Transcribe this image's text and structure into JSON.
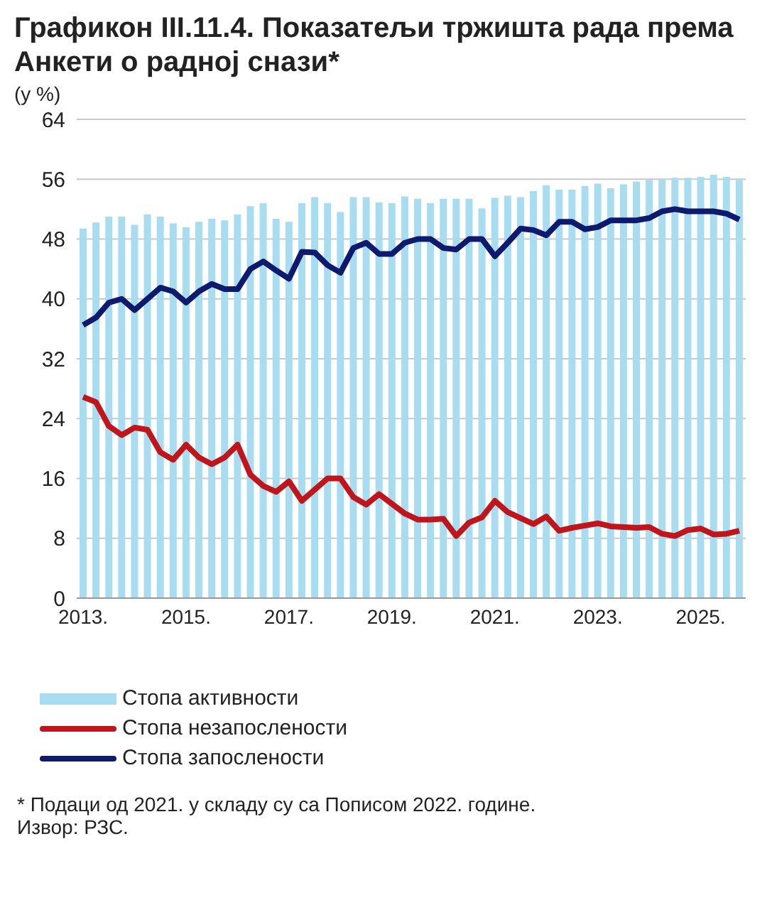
{
  "chart_data": {
    "type": "bar",
    "title": "Графикон III.11.4. Показатељи тржишта рада према Анкети о радној снази*",
    "subtitle": "(у %)",
    "categories": [
      "2013.",
      null,
      null,
      null,
      null,
      null,
      null,
      null,
      "2015.",
      null,
      null,
      null,
      null,
      null,
      null,
      null,
      "2017.",
      null,
      null,
      null,
      null,
      null,
      null,
      null,
      "2019.",
      null,
      null,
      null,
      null,
      null,
      null,
      null,
      "2021.",
      null,
      null,
      null,
      null,
      null,
      null,
      null,
      "2023.",
      null,
      null,
      null,
      null,
      null,
      null,
      null,
      "2025.",
      null,
      null,
      null
    ],
    "series": [
      {
        "name": "Стопа активности",
        "color": "#a8dcf0",
        "values": [
          49.4,
          50.2,
          51,
          51,
          49.9,
          51.3,
          51,
          50.1,
          49.6,
          50.3,
          50.7,
          50.5,
          51.3,
          52.4,
          52.8,
          50.7,
          50.3,
          52.8,
          53.6,
          52.8,
          51.6,
          53.6,
          53.6,
          52.9,
          52.8,
          53.7,
          53.4,
          52.8,
          53.4,
          53.4,
          53.4,
          52.1,
          53.5,
          53.8,
          53.6,
          54.4,
          55.2,
          54.6,
          54.6,
          55.1,
          55.4,
          54.8,
          55.3,
          55.7,
          55.9,
          56,
          56.2,
          56.2,
          56.3,
          56.6,
          56.3,
          55.9
        ]
      },
      {
        "name": "Стопа незапослености",
        "type": "line",
        "color": "#c0151b",
        "values": [
          26.9,
          26.2,
          23,
          21.8,
          22.8,
          22.5,
          19.5,
          18.5,
          20.5,
          18.8,
          17.9,
          18.8,
          20.5,
          16.5,
          15,
          14.2,
          15.6,
          13,
          14.5,
          16,
          16,
          13.5,
          12.5,
          13.9,
          12.6,
          11.3,
          10.5,
          10.5,
          10.6,
          8.3,
          10.1,
          10.8,
          13,
          11.5,
          10.7,
          9.9,
          10.9,
          9,
          9.4,
          9.7,
          10,
          9.6,
          9.5,
          9.4,
          9.5,
          8.6,
          8.3,
          9.1,
          9.3,
          8.5,
          8.6,
          9
        ]
      },
      {
        "name": "Стопа запослености",
        "type": "line",
        "color": "#0d1a6e",
        "values": [
          36.5,
          37.5,
          39.5,
          40,
          38.5,
          40,
          41.5,
          41,
          39.5,
          41,
          42,
          41.3,
          41.3,
          44,
          45,
          43.8,
          42.7,
          46.3,
          46.2,
          44.5,
          43.5,
          46.8,
          47.5,
          46,
          46,
          47.5,
          48,
          48,
          46.8,
          46.6,
          48,
          48,
          45.7,
          47.5,
          49.4,
          49.2,
          48.5,
          50.3,
          50.3,
          49.3,
          49.6,
          50.5,
          50.5,
          50.5,
          50.8,
          51.7,
          52,
          51.7,
          51.7,
          51.7,
          51.4,
          50.6
        ]
      }
    ],
    "ylim": [
      0,
      64
    ],
    "yticks": [
      0,
      8,
      16,
      24,
      32,
      40,
      48,
      56,
      64
    ],
    "grid": "y",
    "legend": "bottom left",
    "marker": "none",
    "line_style": "solid",
    "annotations": [
      "* Подаци од 2021. у складу су са Пописом 2022. године.",
      "Извор: РЗС."
    ]
  }
}
